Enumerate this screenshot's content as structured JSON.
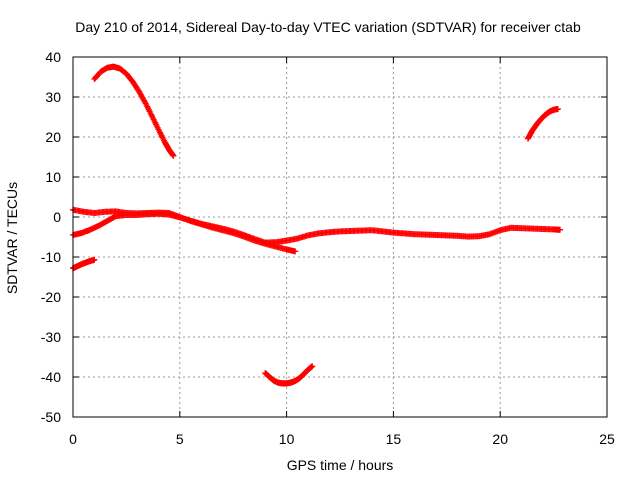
{
  "chart_data": {
    "type": "scatter",
    "title": "Day 210 of 2014, Sidereal Day-to-day VTEC variation (SDTVAR) for receiver ctab",
    "xlabel": "GPS time / hours",
    "ylabel": "SDTVAR / TECUs",
    "xlim": [
      0,
      25
    ],
    "ylim": [
      -50,
      40
    ],
    "xticks": [
      "0",
      "5",
      "10",
      "15",
      "20",
      "25"
    ],
    "yticks": [
      "40",
      "30",
      "20",
      "10",
      "0",
      "-10",
      "-20",
      "-30",
      "-40",
      "-50"
    ],
    "grid": true,
    "marker": "plus",
    "color": "#ff0000",
    "series": [
      {
        "name": "arc-high-early",
        "x": [
          1.0,
          1.3,
          1.6,
          1.9,
          2.2,
          2.5,
          2.8,
          3.1,
          3.4,
          3.7,
          4.0,
          4.3,
          4.5,
          4.7
        ],
        "y": [
          34.5,
          36.3,
          37.3,
          37.6,
          37.1,
          35.8,
          33.8,
          31.3,
          28.4,
          25.2,
          21.9,
          18.7,
          16.8,
          15.3
        ]
      },
      {
        "name": "arc-main-upper",
        "x": [
          0,
          0.5,
          1.0,
          1.5,
          2.0,
          2.5,
          3.0,
          3.5,
          4.0,
          4.5,
          5.0,
          5.5,
          6.0,
          6.5,
          7.0,
          7.5,
          8.0,
          8.5,
          9.0,
          9.5,
          10.0,
          10.4
        ],
        "y": [
          1.8,
          1.3,
          1.0,
          1.3,
          1.4,
          1.0,
          0.9,
          1.0,
          1.1,
          1.0,
          0.0,
          -1.0,
          -1.8,
          -2.6,
          -3.3,
          -4.0,
          -4.9,
          -5.9,
          -6.7,
          -7.4,
          -8.1,
          -8.6
        ]
      },
      {
        "name": "arc-main-lower",
        "x": [
          0,
          0.4,
          0.8,
          1.2,
          1.6,
          2.0,
          2.5,
          3.0,
          3.5,
          4.0,
          4.5,
          5.0,
          5.5,
          6.0,
          6.5,
          7.0,
          7.5,
          8.0,
          8.5,
          9.0,
          9.5,
          10.0,
          10.5,
          11.0,
          11.5,
          12.0,
          12.5,
          13.0,
          13.5,
          14.0,
          14.5,
          15.0,
          15.5,
          16.0,
          16.5,
          17.0,
          17.5,
          18.0,
          18.5,
          19.0,
          19.5,
          20.0,
          20.5,
          21.0,
          21.5,
          22.0,
          22.5,
          22.8
        ],
        "y": [
          -4.5,
          -4.0,
          -3.2,
          -2.2,
          -1.0,
          0.2,
          0.5,
          0.5,
          0.7,
          0.8,
          0.6,
          -0.1,
          -0.9,
          -1.7,
          -2.3,
          -2.9,
          -3.6,
          -4.5,
          -5.5,
          -6.4,
          -6.3,
          -5.9,
          -5.4,
          -4.6,
          -4.1,
          -3.8,
          -3.6,
          -3.5,
          -3.4,
          -3.3,
          -3.6,
          -3.9,
          -4.1,
          -4.3,
          -4.4,
          -4.5,
          -4.6,
          -4.7,
          -4.9,
          -4.8,
          -4.3,
          -3.3,
          -2.7,
          -2.8,
          -2.9,
          -3.0,
          -3.1,
          -3.2
        ]
      },
      {
        "name": "arc-low-early",
        "x": [
          0,
          0.2,
          0.4,
          0.6,
          0.8,
          1.0
        ],
        "y": [
          -12.8,
          -12.3,
          -11.8,
          -11.4,
          -11.0,
          -10.7
        ]
      },
      {
        "name": "arc-minus-forty",
        "x": [
          9.0,
          9.2,
          9.4,
          9.6,
          9.8,
          10.0,
          10.2,
          10.4,
          10.6,
          10.8,
          11.0,
          11.2
        ],
        "y": [
          -39.0,
          -40.0,
          -40.9,
          -41.4,
          -41.6,
          -41.6,
          -41.4,
          -41.0,
          -40.3,
          -39.3,
          -38.2,
          -37.3
        ]
      },
      {
        "name": "arc-high-late",
        "x": [
          21.3,
          21.5,
          21.7,
          21.9,
          22.1,
          22.3,
          22.5,
          22.7
        ],
        "y": [
          19.6,
          21.6,
          23.1,
          24.4,
          25.5,
          26.3,
          26.8,
          27.0
        ]
      }
    ]
  }
}
